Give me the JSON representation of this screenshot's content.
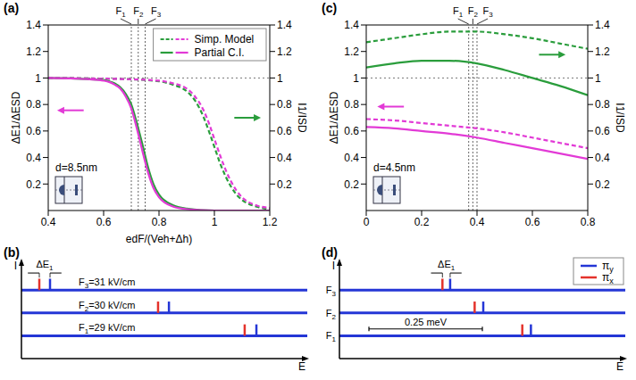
{
  "chart_data": [
    {
      "panel": "(a)",
      "type": "line",
      "x_label": "edF/(Veh+Δh)",
      "y_label": "ΔE1/ΔESD",
      "y2_label": "I1/ISD",
      "xlim": [
        0.4,
        1.2
      ],
      "xticks": [
        0.4,
        0.6,
        0.8,
        1,
        1.2
      ],
      "ylim": [
        0,
        1.4
      ],
      "yticks": [
        0.2,
        0.4,
        0.6,
        0.8,
        1,
        1.2,
        1.4
      ],
      "y2lim": [
        0,
        1.4
      ],
      "y2ticks": [
        0.2,
        0.4,
        0.6,
        0.8,
        1,
        1.2,
        1.4
      ],
      "legend": "upper right",
      "annotation": "d=8.5nm",
      "reference_y": 1,
      "field_markers": [
        {
          "label": "F1",
          "x": 0.7
        },
        {
          "label": "F2",
          "x": 0.725
        },
        {
          "label": "F3",
          "x": 0.75
        }
      ],
      "series": [
        {
          "name": "Simp. Model",
          "color": "#2a9d3c",
          "line_style": "dashed",
          "axis": "y2",
          "x": [
            0.4,
            0.6,
            0.7,
            0.8,
            0.85,
            0.9,
            0.93,
            0.96,
            0.98,
            1,
            1.02,
            1.04,
            1.06,
            1.08,
            1.1,
            1.15,
            1.2
          ],
          "values": [
            1,
            0.995,
            0.99,
            0.975,
            0.95,
            0.9,
            0.83,
            0.71,
            0.6,
            0.48,
            0.36,
            0.26,
            0.18,
            0.12,
            0.08,
            0.03,
            0.01
          ]
        },
        {
          "name": "Simp. Model",
          "color": "#e23ad6",
          "line_style": "dashed",
          "axis": "y",
          "x": [
            0.4,
            0.6,
            0.7,
            0.8,
            0.85,
            0.9,
            0.93,
            0.96,
            0.98,
            1,
            1.02,
            1.04,
            1.06,
            1.08,
            1.1,
            1.15,
            1.2
          ],
          "values": [
            1,
            0.995,
            0.99,
            0.98,
            0.96,
            0.92,
            0.86,
            0.76,
            0.66,
            0.54,
            0.42,
            0.31,
            0.22,
            0.15,
            0.1,
            0.04,
            0.02
          ]
        },
        {
          "name": "Partial C.I.",
          "color": "#2a9d3c",
          "line_style": "solid",
          "axis": "y2",
          "x": [
            0.4,
            0.5,
            0.55,
            0.6,
            0.62,
            0.64,
            0.66,
            0.68,
            0.7,
            0.72,
            0.74,
            0.76,
            0.78,
            0.8,
            0.85,
            0.9,
            1,
            1.1,
            1.2
          ],
          "values": [
            1,
            0.995,
            0.99,
            0.985,
            0.975,
            0.96,
            0.93,
            0.88,
            0.8,
            0.66,
            0.5,
            0.33,
            0.2,
            0.12,
            0.04,
            0.015,
            0,
            0,
            0
          ]
        },
        {
          "name": "Partial C.I.",
          "color": "#e23ad6",
          "line_style": "solid",
          "axis": "y",
          "x": [
            0.4,
            0.5,
            0.55,
            0.6,
            0.62,
            0.64,
            0.66,
            0.68,
            0.7,
            0.72,
            0.74,
            0.76,
            0.78,
            0.8,
            0.85,
            0.9,
            1,
            1.1,
            1.2
          ],
          "values": [
            1,
            0.995,
            0.99,
            0.98,
            0.97,
            0.95,
            0.92,
            0.86,
            0.77,
            0.62,
            0.45,
            0.29,
            0.17,
            0.1,
            0.03,
            0.01,
            0,
            0,
            0
          ]
        }
      ]
    },
    {
      "panel": "(b)",
      "type": "stick",
      "x_label": "E",
      "y_label": "I",
      "tick_labels": false,
      "xlim": [
        0,
        1
      ],
      "levels": [
        "F1=29 kV/cm",
        "F2=30 kV/cm",
        "F3=31 kV/cm"
      ],
      "annotation": "ΔE1",
      "series": [
        {
          "color": "#e4322b",
          "values": [
            0.781,
            0.478,
            0.0625
          ]
        },
        {
          "color": "#2436d6",
          "values": [
            0.822,
            0.516,
            0.1
          ]
        }
      ]
    },
    {
      "panel": "(c)",
      "type": "line",
      "y_label": "ΔE1/ΔESD",
      "y2_label": "I1/ISD",
      "xlim": [
        0,
        0.8
      ],
      "xticks": [
        0,
        0.2,
        0.4,
        0.6,
        0.8
      ],
      "ylim": [
        0,
        1.4
      ],
      "yticks": [
        0.2,
        0.4,
        0.6,
        0.8,
        1,
        1.2,
        1.4
      ],
      "y2lim": [
        0,
        1.4
      ],
      "y2ticks": [
        0.2,
        0.4,
        0.6,
        0.8,
        1,
        1.2,
        1.4
      ],
      "annotation": "d=4.5nm",
      "reference_y": 1,
      "field_markers": [
        {
          "label": "F1",
          "x": 0.37
        },
        {
          "label": "F2",
          "x": 0.385
        },
        {
          "label": "F3",
          "x": 0.4
        }
      ],
      "series": [
        {
          "color": "#2a9d3c",
          "line_style": "dashed",
          "axis": "y2",
          "x": [
            0,
            0.1,
            0.2,
            0.3,
            0.4,
            0.5,
            0.6,
            0.7,
            0.8
          ],
          "values": [
            1.27,
            1.3,
            1.33,
            1.35,
            1.35,
            1.33,
            1.3,
            1.26,
            1.22
          ]
        },
        {
          "color": "#e23ad6",
          "line_style": "dashed",
          "axis": "y",
          "x": [
            0,
            0.1,
            0.2,
            0.3,
            0.4,
            0.5,
            0.6,
            0.7,
            0.8
          ],
          "values": [
            0.69,
            0.68,
            0.66,
            0.64,
            0.62,
            0.59,
            0.55,
            0.51,
            0.47
          ]
        },
        {
          "color": "#2a9d3c",
          "line_style": "solid",
          "axis": "y2",
          "x": [
            0,
            0.1,
            0.2,
            0.3,
            0.4,
            0.5,
            0.6,
            0.7,
            0.8
          ],
          "values": [
            1.08,
            1.11,
            1.13,
            1.13,
            1.11,
            1.06,
            1,
            0.94,
            0.87
          ]
        },
        {
          "color": "#e23ad6",
          "line_style": "solid",
          "axis": "y",
          "x": [
            0,
            0.1,
            0.2,
            0.3,
            0.4,
            0.5,
            0.6,
            0.7,
            0.8
          ],
          "values": [
            0.63,
            0.62,
            0.6,
            0.58,
            0.55,
            0.51,
            0.47,
            0.43,
            0.39
          ]
        }
      ]
    },
    {
      "panel": "(d)",
      "type": "stick",
      "x_label": "E",
      "y_label": "I",
      "tick_labels": false,
      "xlim": [
        0,
        0.63
      ],
      "levels": [
        "F1",
        "F2",
        "F3"
      ],
      "annotation": "ΔE1",
      "legend": "upper right",
      "scale_bar": {
        "label": "0.25 meV",
        "start": 0.065,
        "length": 0.25
      },
      "series": [
        {
          "name": "πy",
          "color": "#2436d6",
          "values": [
            0.422,
            0.317,
            0.244
          ]
        },
        {
          "name": "πx",
          "color": "#e4322b",
          "values": [
            0.403,
            0.298,
            0.227
          ]
        }
      ]
    }
  ]
}
